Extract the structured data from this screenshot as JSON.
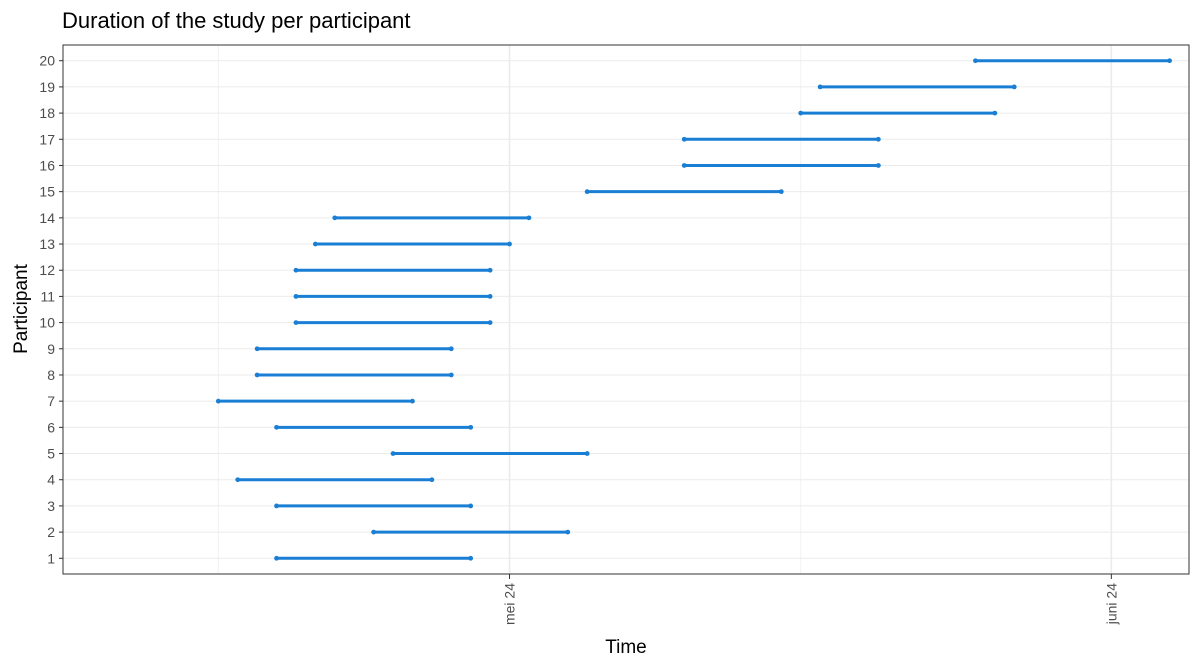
{
  "chart_data": {
    "type": "line",
    "title": "Duration of the study per participant",
    "xlabel": "Time",
    "ylabel": "Participant",
    "x_axis": {
      "type": "date",
      "range": [
        "2024-04-08",
        "2024-06-05"
      ],
      "ticks": [
        {
          "date": "2024-05-01",
          "label": "mei 24"
        },
        {
          "date": "2024-06-01",
          "label": "juni 24"
        }
      ],
      "minor_ticks": [
        "2024-04-16",
        "2024-05-16"
      ]
    },
    "y_axis": {
      "range": [
        0.4,
        20.6
      ],
      "ticks": [
        1,
        2,
        3,
        4,
        5,
        6,
        7,
        8,
        9,
        10,
        11,
        12,
        13,
        14,
        15,
        16,
        17,
        18,
        19,
        20
      ]
    },
    "grid": true,
    "series_color": "#1a7fd4",
    "segments": [
      {
        "participant": 1,
        "start": "2024-04-19",
        "end": "2024-04-29"
      },
      {
        "participant": 2,
        "start": "2024-04-24",
        "end": "2024-05-04"
      },
      {
        "participant": 3,
        "start": "2024-04-19",
        "end": "2024-04-29"
      },
      {
        "participant": 4,
        "start": "2024-04-17",
        "end": "2024-04-27"
      },
      {
        "participant": 5,
        "start": "2024-04-25",
        "end": "2024-05-05"
      },
      {
        "participant": 6,
        "start": "2024-04-19",
        "end": "2024-04-29"
      },
      {
        "participant": 7,
        "start": "2024-04-16",
        "end": "2024-04-26"
      },
      {
        "participant": 8,
        "start": "2024-04-18",
        "end": "2024-04-28"
      },
      {
        "participant": 9,
        "start": "2024-04-18",
        "end": "2024-04-28"
      },
      {
        "participant": 10,
        "start": "2024-04-20",
        "end": "2024-04-30"
      },
      {
        "participant": 11,
        "start": "2024-04-20",
        "end": "2024-04-30"
      },
      {
        "participant": 12,
        "start": "2024-04-20",
        "end": "2024-04-30"
      },
      {
        "participant": 13,
        "start": "2024-04-21",
        "end": "2024-05-01"
      },
      {
        "participant": 14,
        "start": "2024-04-22",
        "end": "2024-05-02"
      },
      {
        "participant": 15,
        "start": "2024-05-05",
        "end": "2024-05-15"
      },
      {
        "participant": 16,
        "start": "2024-05-10",
        "end": "2024-05-20"
      },
      {
        "participant": 17,
        "start": "2024-05-10",
        "end": "2024-05-20"
      },
      {
        "participant": 18,
        "start": "2024-05-16",
        "end": "2024-05-26"
      },
      {
        "participant": 19,
        "start": "2024-05-17",
        "end": "2024-05-27"
      },
      {
        "participant": 20,
        "start": "2024-05-25",
        "end": "2024-06-04"
      }
    ]
  }
}
